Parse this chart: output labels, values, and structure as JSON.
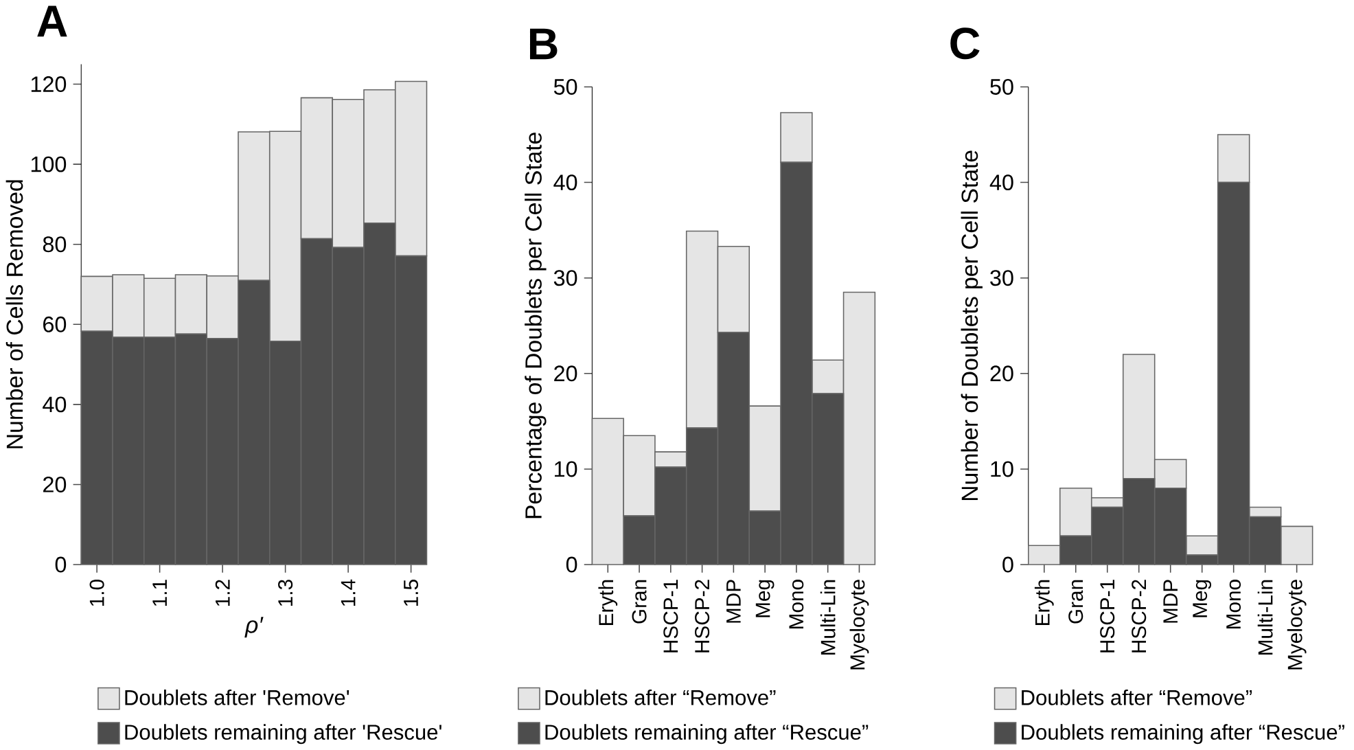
{
  "chart_data": [
    {
      "type": "bar",
      "title": "A",
      "xlabel": "ρ′",
      "ylabel": "Number of Cells Removed",
      "stacked": true,
      "legend": "bottom",
      "categories": [
        "1.0",
        null,
        "1.1",
        null,
        "1.2",
        null,
        "1.3",
        null,
        "1.4",
        null,
        "1.5"
      ],
      "ylim": [
        0,
        125
      ],
      "yticks": [
        0,
        20,
        40,
        60,
        80,
        100,
        120
      ],
      "series": [
        {
          "name": "Doublets remaining after 'Rescue'",
          "color": "#4d4d4d",
          "values": [
            58.3,
            56.8,
            56.8,
            57.6,
            56.5,
            71.0,
            55.8,
            81.4,
            79.2,
            85.3,
            77.1
          ]
        },
        {
          "name": "Doublets after 'Remove'",
          "color": "#e5e5e5",
          "values": [
            13.7,
            15.6,
            14.7,
            14.8,
            15.6,
            37.1,
            52.4,
            35.2,
            37.0,
            33.3,
            43.6
          ]
        }
      ]
    },
    {
      "type": "bar",
      "title": "B",
      "ylabel": "Percentage of Doublets per Cell State",
      "stacked": true,
      "legend": "bottom",
      "categories": [
        "Eryth",
        "Gran",
        "HSCP-1",
        "HSCP-2",
        "MDP",
        "Meg",
        "Mono",
        "Multi-Lin",
        "Myelocyte"
      ],
      "ylim": [
        0,
        50
      ],
      "yticks": [
        0,
        10,
        20,
        30,
        40,
        50
      ],
      "series": [
        {
          "name": "Doublets remaining after “Rescue”",
          "color": "#4d4d4d",
          "values": [
            0,
            5.1,
            10.2,
            14.3,
            24.3,
            5.6,
            42.1,
            17.9,
            0
          ]
        },
        {
          "name": "Doublets after “Remove”",
          "color": "#e5e5e5",
          "values": [
            15.3,
            8.4,
            1.6,
            20.6,
            9.0,
            11.0,
            5.2,
            3.5,
            28.5
          ]
        }
      ]
    },
    {
      "type": "bar",
      "title": "C",
      "ylabel": "Number of Doublets per Cell State",
      "stacked": true,
      "legend": "bottom",
      "categories": [
        "Eryth",
        "Gran",
        "HSCP-1",
        "HSCP-2",
        "MDP",
        "Meg",
        "Mono",
        "Multi-Lin",
        "Myelocyte"
      ],
      "ylim": [
        0,
        50
      ],
      "yticks": [
        0,
        10,
        20,
        30,
        40,
        50
      ],
      "series": [
        {
          "name": "Doublets remaining after “Rescue”",
          "color": "#4d4d4d",
          "values": [
            0,
            3,
            6,
            9,
            8,
            1,
            40,
            5,
            0
          ]
        },
        {
          "name": "Doublets after “Remove”",
          "color": "#e5e5e5",
          "values": [
            2,
            5,
            1,
            13,
            3,
            2,
            5,
            1,
            4
          ]
        }
      ]
    }
  ]
}
